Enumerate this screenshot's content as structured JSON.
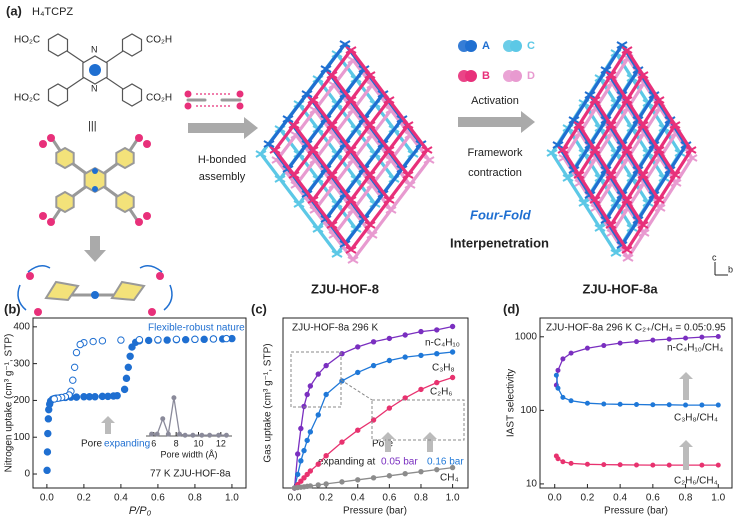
{
  "panel_a": {
    "label": "(a)",
    "molecule": "H₄TCPZ",
    "groups": [
      "HO₂C",
      "CO₂H",
      "HO₂C",
      "CO₂H"
    ],
    "atoms": [
      "N",
      "N"
    ],
    "equivalence": "|||",
    "step1": [
      "H-bonded",
      "assembly"
    ],
    "framework1": "ZJU-HOF-8",
    "step2": [
      "Activation",
      "Framework",
      "contraction"
    ],
    "interpenetration": [
      "Four-Fold",
      "Interpenetration"
    ],
    "nets": [
      "A",
      "B",
      "C",
      "D"
    ],
    "axes": [
      "c",
      "b"
    ],
    "framework2": "ZJU-HOF-8a"
  },
  "chart_data": [
    {
      "type": "scatter",
      "panel_label": "(b)",
      "ylabel": "Nitrogen uptake (cm³ g⁻¹, STP)",
      "xlabel": "P/P₀",
      "xlim": [
        -0.075,
        1.076
      ],
      "ylim": [
        -38,
        424
      ],
      "xticks": [
        {
          "value": 0,
          "label": "0.0"
        },
        {
          "value": 0.2,
          "label": "0.2"
        },
        {
          "value": 0.4,
          "label": "0.4"
        },
        {
          "value": 0.6,
          "label": "0.6"
        },
        {
          "value": 0.8,
          "label": "0.8"
        },
        {
          "value": 1,
          "label": "1.0"
        }
      ],
      "yticks": [
        0,
        100,
        200,
        300,
        400
      ],
      "annotations": [
        {
          "text": "Flexible-robust nature",
          "color": "#1f6fd1"
        },
        {
          "text": "Pore",
          "color": "#222222"
        },
        {
          "text": "expanding",
          "color": "#1f6fd1"
        },
        {
          "text": "77 K   ZJU-HOF-8a",
          "color": "#222222"
        }
      ],
      "series": [
        {
          "color": "#1f6fd1",
          "marker": "filled",
          "x": [
            0.001,
            0.003,
            0.005,
            0.008,
            0.01,
            0.015,
            0.02,
            0.03,
            0.04,
            0.05,
            0.07,
            0.1,
            0.13,
            0.16,
            0.2,
            0.23,
            0.26,
            0.3,
            0.33,
            0.36,
            0.38,
            0.42,
            0.43,
            0.44,
            0.45,
            0.46,
            0.48,
            0.5,
            0.55,
            0.6,
            0.65,
            0.7,
            0.75,
            0.8,
            0.85,
            0.9,
            0.95,
            1.0
          ],
          "values": [
            10,
            60,
            110,
            150,
            175,
            190,
            198,
            203,
            205,
            206,
            207,
            208,
            209,
            209,
            210,
            210,
            210,
            211,
            211,
            212,
            213,
            230,
            260,
            290,
            320,
            345,
            358,
            362,
            363,
            364,
            364,
            365,
            365,
            366,
            366,
            367,
            367,
            368
          ]
        },
        {
          "color": "#1f6fd1",
          "marker": "open",
          "x": [
            0.97,
            0.9,
            0.8,
            0.7,
            0.6,
            0.5,
            0.4,
            0.3,
            0.25,
            0.2,
            0.18,
            0.16,
            0.15,
            0.14,
            0.13,
            0.12,
            0.1,
            0.08,
            0.06,
            0.04
          ],
          "values": [
            368,
            367,
            366,
            366,
            365,
            365,
            364,
            362,
            360,
            357,
            352,
            330,
            290,
            255,
            225,
            215,
            210,
            208,
            206,
            204
          ]
        }
      ]
    },
    {
      "type": "line",
      "xlabel": "Pore width (Å)",
      "xlim": [
        5.3,
        13
      ],
      "ylim": [
        0,
        1.15
      ],
      "xticks": [
        6,
        8,
        10,
        12
      ],
      "series": [
        {
          "color": "#8a8a9a",
          "marker": "filled",
          "x": [
            5.8,
            6.3,
            6.8,
            7.3,
            7.8,
            8.3,
            8.8,
            9.5,
            10.3,
            11,
            11.8,
            12.5
          ],
          "values": [
            0.05,
            0.05,
            0.45,
            0.05,
            1.0,
            0.05,
            0.02,
            0.02,
            0.02,
            0.02,
            0.02,
            0.02
          ]
        }
      ]
    },
    {
      "type": "line",
      "panel_label": "(c)",
      "ylabel": "Gas uptake (cm³ g⁻¹, STP)",
      "xlabel": "Pressure (bar)",
      "xlim": [
        -0.073,
        1.0975
      ],
      "ylim": [
        0,
        100
      ],
      "xticks": [
        {
          "value": 0,
          "label": "0.0"
        },
        {
          "value": 0.2,
          "label": "0.2"
        },
        {
          "value": 0.4,
          "label": "0.4"
        },
        {
          "value": 0.6,
          "label": "0.6"
        },
        {
          "value": 0.8,
          "label": "0.8"
        },
        {
          "value": 1,
          "label": "1.0"
        }
      ],
      "annotations": [
        {
          "text": "ZJU-HOF-8a   296 K",
          "color": "#222222"
        },
        {
          "text": "Pore",
          "color": "#222222"
        },
        {
          "text": "expanding at",
          "color": "#222222"
        },
        {
          "text": "0.05 bar",
          "color": "#7a2fc0"
        },
        {
          "text": "0.16 bar",
          "color": "#1f78d8"
        }
      ],
      "x": [
        0,
        0.02,
        0.04,
        0.06,
        0.08,
        0.1,
        0.15,
        0.2,
        0.3,
        0.4,
        0.5,
        0.6,
        0.7,
        0.8,
        0.9,
        1.0
      ],
      "series": [
        {
          "name": "n-C₄H₁₀",
          "color": "#7a2fc0",
          "marker": "filled",
          "values": [
            0,
            20,
            35,
            48,
            55,
            60,
            67,
            72,
            79,
            83,
            86,
            88,
            90,
            92,
            93,
            95
          ]
        },
        {
          "name": "C₃H₈",
          "color": "#1f78d8",
          "marker": "filled",
          "values": [
            0,
            8,
            16,
            22,
            28,
            33,
            43,
            55,
            63,
            68,
            72,
            75,
            77,
            78,
            79,
            80
          ]
        },
        {
          "name": "C₂H₆",
          "color": "#e8326f",
          "marker": "filled",
          "values": [
            0,
            2,
            4,
            6,
            8,
            10,
            14,
            19,
            27,
            34,
            40,
            47,
            53,
            58,
            62,
            65
          ]
        },
        {
          "name": "CH₄",
          "color": "#8c8c8c",
          "marker": "filled",
          "values": [
            0,
            0.3,
            0.5,
            0.7,
            1,
            1.2,
            1.8,
            2.4,
            3.6,
            4.8,
            6,
            7.2,
            8.4,
            9.6,
            10.8,
            12
          ]
        }
      ]
    },
    {
      "type": "line",
      "panel_label": "(d)",
      "ylabel": "IAST selectivity",
      "xlabel": "Pressure (bar)",
      "log": true,
      "xlim": [
        -0.09,
        1.084
      ],
      "ylim": [
        8.8,
        1800
      ],
      "xticks": [
        {
          "value": 0,
          "label": "0.0"
        },
        {
          "value": 0.2,
          "label": "0.2"
        },
        {
          "value": 0.4,
          "label": "0.4"
        },
        {
          "value": 0.6,
          "label": "0.6"
        },
        {
          "value": 0.8,
          "label": "0.8"
        },
        {
          "value": 1,
          "label": "1.0"
        }
      ],
      "yticks": [
        10,
        100,
        1000
      ],
      "annotations": [
        {
          "text": "ZJU-HOF-8a   296 K   C₂₊/CH₄ = 0.05:0.95",
          "color": "#222222"
        }
      ],
      "x": [
        0.01,
        0.02,
        0.05,
        0.1,
        0.2,
        0.3,
        0.4,
        0.5,
        0.6,
        0.7,
        0.8,
        0.9,
        1.0
      ],
      "series": [
        {
          "name": "n-C₄H₁₀/CH₄",
          "color": "#7a2fc0",
          "marker": "filled",
          "values": [
            220,
            350,
            500,
            600,
            700,
            760,
            820,
            860,
            900,
            930,
            960,
            990,
            1010
          ]
        },
        {
          "name": "C₃H₈/CH₄",
          "color": "#1f78d8",
          "marker": "filled",
          "values": [
            300,
            200,
            150,
            135,
            125,
            122,
            121,
            120,
            119,
            119,
            118,
            118,
            118
          ]
        },
        {
          "name": "C₂H₆/CH₄",
          "color": "#e8326f",
          "marker": "filled",
          "values": [
            24,
            22,
            20,
            19,
            18.5,
            18.3,
            18.2,
            18.1,
            18,
            18,
            18,
            18,
            18
          ]
        }
      ]
    }
  ]
}
